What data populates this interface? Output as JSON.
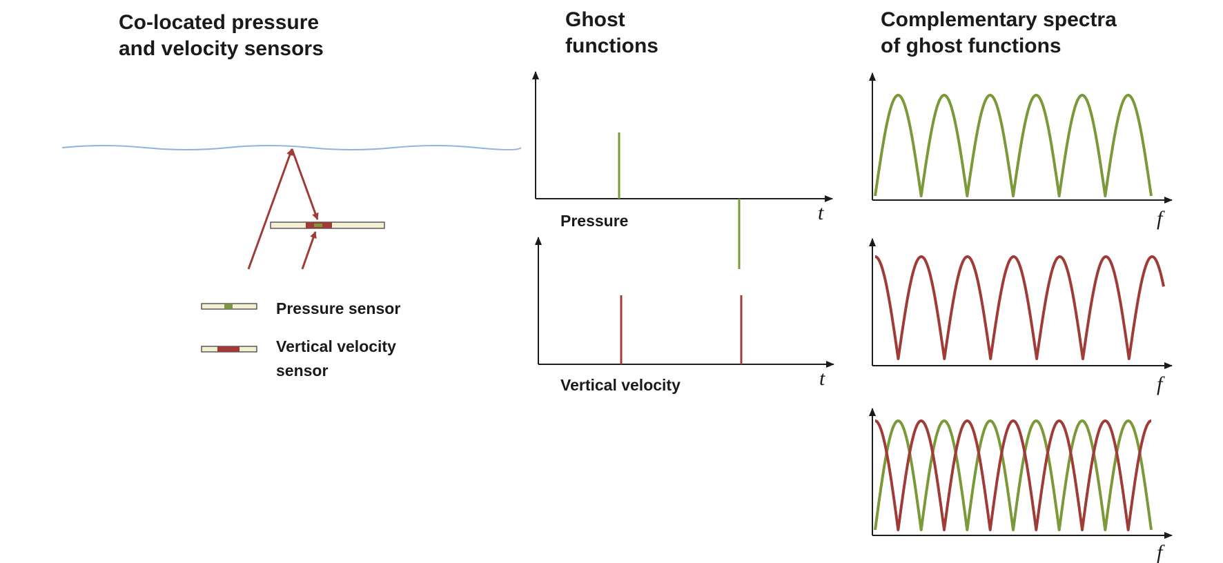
{
  "titles": {
    "left_line1": "Co-located pressure",
    "left_line2": "and velocity sensors",
    "mid_line1": "Ghost",
    "mid_line2": "functions",
    "right_line1": "Complementary spectra",
    "right_line2": "of ghost functions"
  },
  "legend": {
    "pressure": "Pressure sensor",
    "velocity_line1": "Vertical velocity",
    "velocity_line2": "sensor"
  },
  "ghost_plots": {
    "pressure_label": "Pressure",
    "velocity_label": "Vertical velocity",
    "time_axis": "t"
  },
  "spectra": {
    "freq_axis": "f"
  },
  "colors": {
    "pressure": "#7a9a3a",
    "velocity": "#a03c37",
    "water": "#8fb3de",
    "sensor_body": "#f2efd2",
    "axis": "#1a1a1a"
  }
}
